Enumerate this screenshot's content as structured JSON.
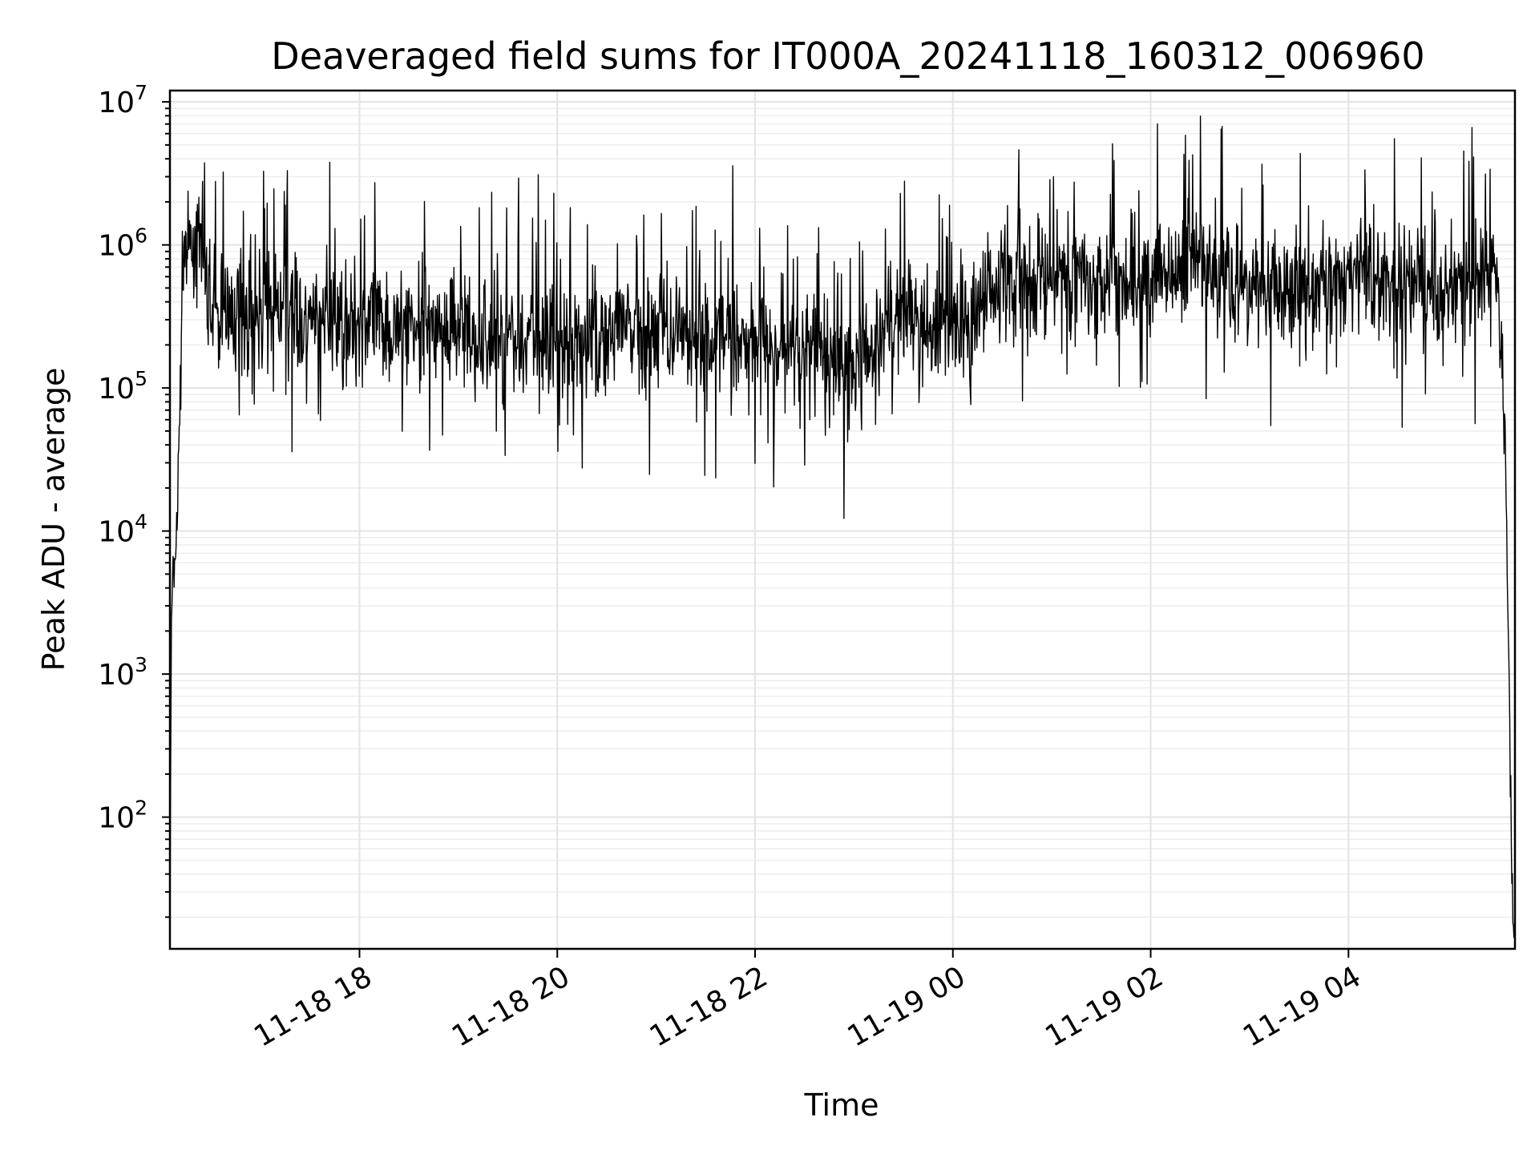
{
  "chart_data": {
    "type": "line",
    "title": "Deaveraged field sums for IT000A_20241118_160312_006960",
    "xlabel": "Time",
    "ylabel": "Peak ADU - average",
    "yscale": "log",
    "ylim": [
      12,
      12000000
    ],
    "xlim": [
      "2024-11-18 16:05",
      "2024-11-19 05:41"
    ],
    "grid": true,
    "line_color": "#000000",
    "x_ticks": [
      {
        "time": "2024-11-18 18:00",
        "label": "11-18 18"
      },
      {
        "time": "2024-11-18 20:00",
        "label": "11-18 20"
      },
      {
        "time": "2024-11-18 22:00",
        "label": "11-18 22"
      },
      {
        "time": "2024-11-19 00:00",
        "label": "11-19 00"
      },
      {
        "time": "2024-11-19 02:00",
        "label": "11-19 02"
      },
      {
        "time": "2024-11-19 04:00",
        "label": "11-19 04"
      }
    ],
    "y_ticks": [
      {
        "value": 100,
        "base": "10",
        "exp": "2"
      },
      {
        "value": 1000,
        "base": "10",
        "exp": "3"
      },
      {
        "value": 10000,
        "base": "10",
        "exp": "4"
      },
      {
        "value": 100000,
        "base": "10",
        "exp": "5"
      },
      {
        "value": 1000000,
        "base": "10",
        "exp": "6"
      },
      {
        "value": 10000000,
        "base": "10",
        "exp": "7"
      }
    ],
    "series": [
      {
        "values_description": "approximate envelope of the noisy trace (time, typical level)",
        "points": [
          [
            "2024-11-18 16:05",
            15
          ],
          [
            "2024-11-18 16:06",
            3000
          ],
          [
            "2024-11-18 16:08",
            6000
          ],
          [
            "2024-11-18 16:10",
            20000
          ],
          [
            "2024-11-18 16:13",
            900000
          ],
          [
            "2024-11-18 16:20",
            1100000
          ],
          [
            "2024-11-18 16:25",
            700000
          ],
          [
            "2024-11-18 16:30",
            350000
          ],
          [
            "2024-11-18 17:00",
            330000
          ],
          [
            "2024-11-18 17:30",
            300000
          ],
          [
            "2024-11-18 18:00",
            290000
          ],
          [
            "2024-11-18 18:30",
            280000
          ],
          [
            "2024-11-18 19:00",
            250000
          ],
          [
            "2024-11-18 19:30",
            210000
          ],
          [
            "2024-11-18 20:00",
            200000
          ],
          [
            "2024-11-18 20:30",
            230000
          ],
          [
            "2024-11-18 21:00",
            260000
          ],
          [
            "2024-11-18 21:30",
            220000
          ],
          [
            "2024-11-18 22:00",
            230000
          ],
          [
            "2024-11-18 22:30",
            170000
          ],
          [
            "2024-11-18 23:00",
            140000
          ],
          [
            "2024-11-18 23:30",
            320000
          ],
          [
            "2024-11-19 00:00",
            240000
          ],
          [
            "2024-11-19 00:30",
            500000
          ],
          [
            "2024-11-19 01:00",
            600000
          ],
          [
            "2024-11-19 01:30",
            650000
          ],
          [
            "2024-11-19 02:00",
            550000
          ],
          [
            "2024-11-19 02:30",
            800000
          ],
          [
            "2024-11-19 03:00",
            520000
          ],
          [
            "2024-11-19 03:30",
            450000
          ],
          [
            "2024-11-19 04:00",
            750000
          ],
          [
            "2024-11-19 04:30",
            500000
          ],
          [
            "2024-11-19 05:00",
            500000
          ],
          [
            "2024-11-19 05:30",
            600000
          ],
          [
            "2024-11-19 05:35",
            60000
          ],
          [
            "2024-11-19 05:38",
            300
          ],
          [
            "2024-11-19 05:40",
            15
          ]
        ]
      }
    ]
  }
}
